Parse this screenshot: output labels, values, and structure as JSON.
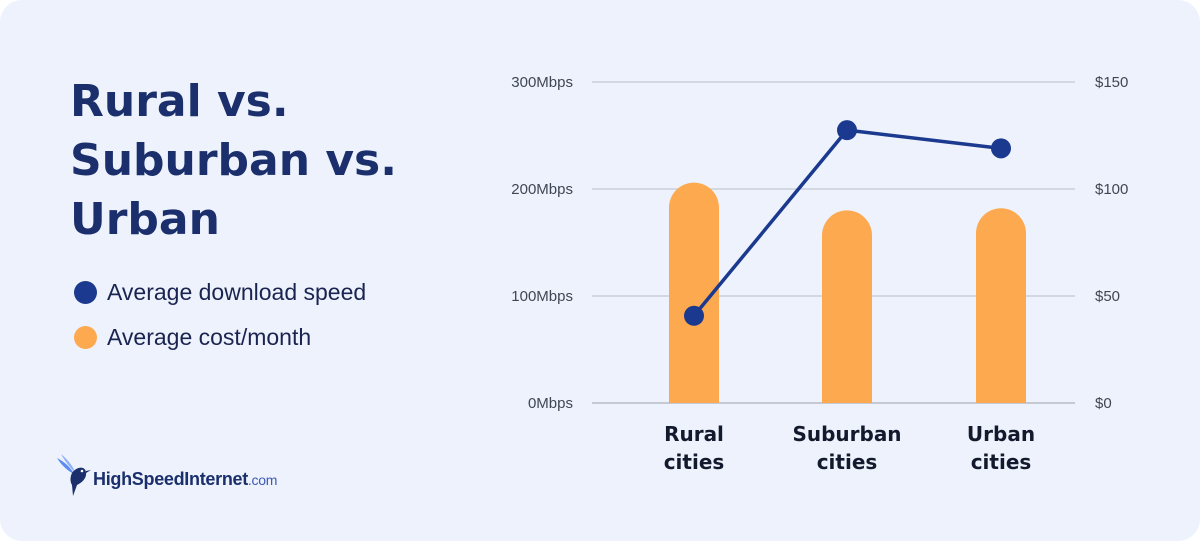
{
  "title_lines": [
    "Rural vs.",
    "Suburban vs.",
    "Urban"
  ],
  "legend": [
    {
      "label": "Average download speed",
      "color": "#1b3a8f"
    },
    {
      "label": "Average cost/month",
      "color": "#fda94f"
    }
  ],
  "logo": {
    "name": "HighSpeedInternet",
    "suffix": ".com",
    "icon": "hummingbird-icon"
  },
  "chart_data": {
    "type": "bar+line",
    "categories": [
      [
        "Rural",
        "cities"
      ],
      [
        "Suburban",
        "cities"
      ],
      [
        "Urban",
        "cities"
      ]
    ],
    "series": [
      {
        "name": "Average cost/month",
        "type": "bar",
        "axis": "right",
        "values": [
          103,
          90,
          91
        ],
        "color": "#fda94f"
      },
      {
        "name": "Average download speed",
        "type": "line",
        "axis": "left",
        "values": [
          81.5,
          255,
          238
        ],
        "color": "#1b3a8f"
      }
    ],
    "y_left": {
      "ticks": [
        "0Mbps",
        "100Mbps",
        "200Mbps",
        "300Mbps"
      ],
      "range": [
        0,
        300
      ]
    },
    "y_right": {
      "ticks": [
        "$0",
        "$50",
        "$100",
        "$150"
      ],
      "range": [
        0,
        150
      ]
    },
    "grid": true
  }
}
